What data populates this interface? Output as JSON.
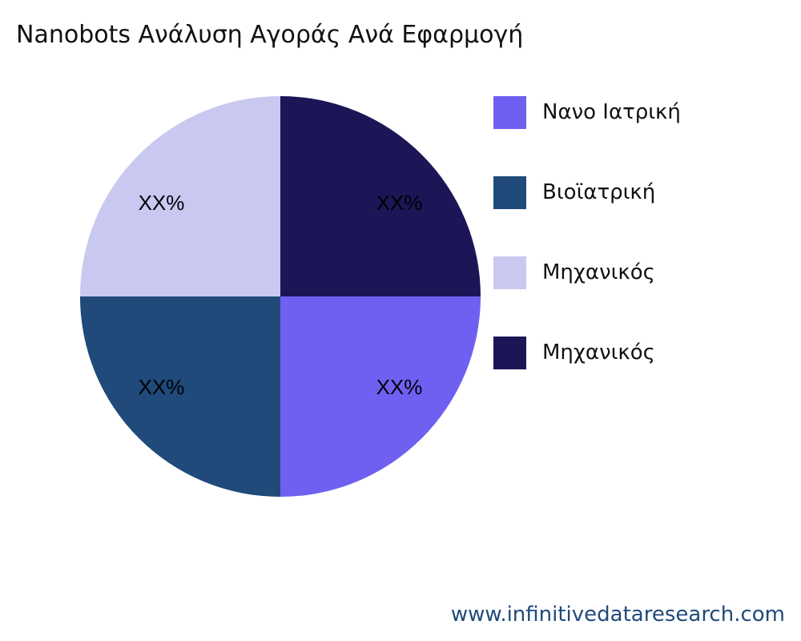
{
  "chart_data": {
    "type": "pie",
    "title": "Nanobots Ανάλυση Αγοράς Ανά Εφαρμογή",
    "categories": [
      "Νανο Ιατρική",
      "Βιοϊατρική",
      "Μηχανικός",
      "Μηχανικός"
    ],
    "values": [
      25,
      25,
      25,
      25
    ],
    "data_labels": [
      "XX%",
      "XX%",
      "XX%",
      "XX%"
    ],
    "colors": [
      "#6F60F2",
      "#1F4A7A",
      "#C8C8F0",
      "#1C1656"
    ],
    "legend_position": "right"
  },
  "footer": {
    "source": "www.infinitivedataresearch.com"
  }
}
